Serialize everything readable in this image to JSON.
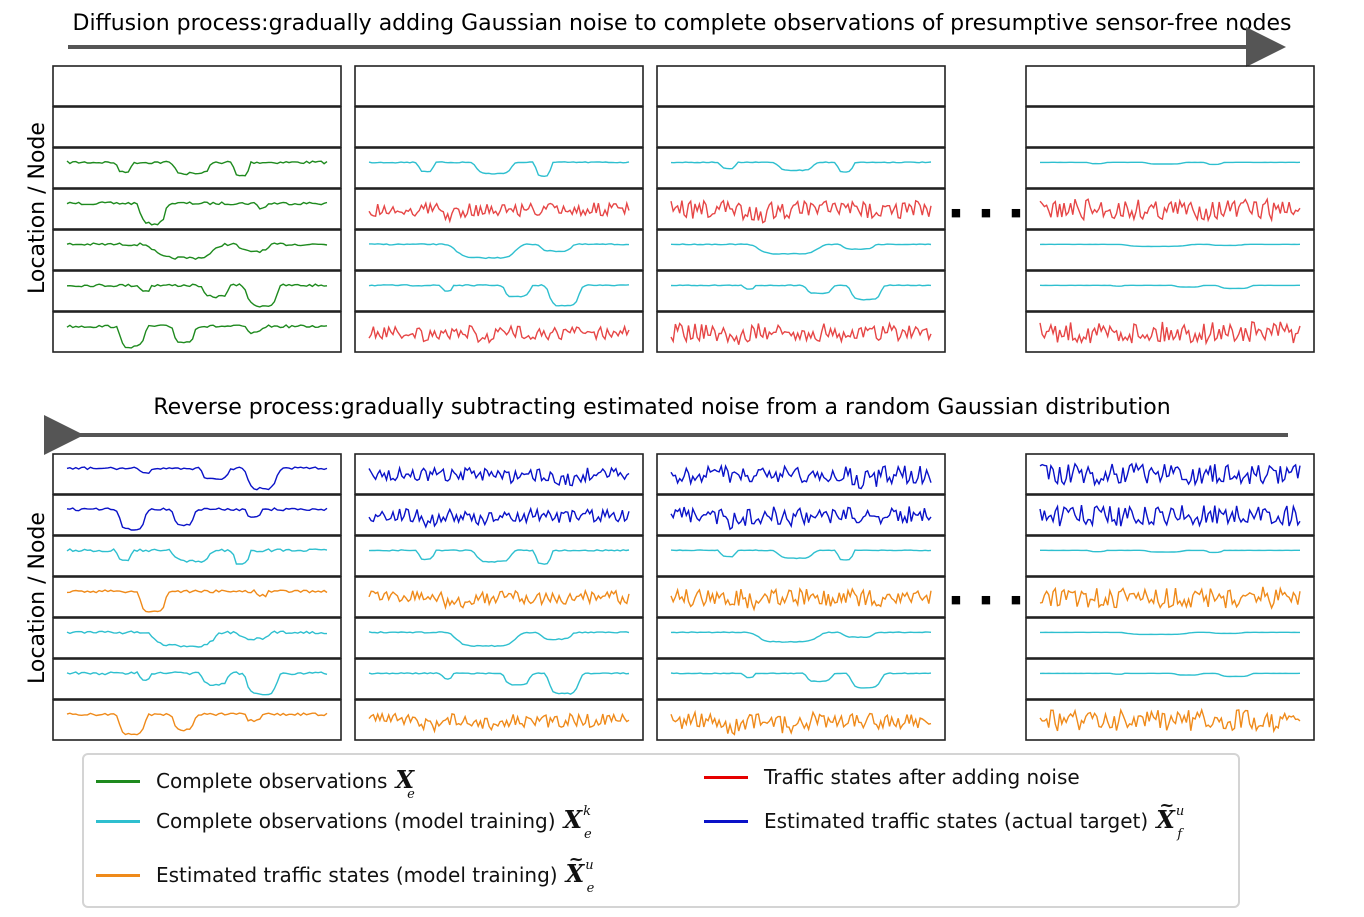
{
  "forward_title": "Diffusion process:gradually adding Gaussian noise to complete observations of presumptive sensor-free nodes",
  "reverse_title": "Reverse process:gradually subtracting estimated noise from a random Gaussian distribution",
  "y_axis_label": "Location / Node",
  "ellipsis_glyph": "■",
  "colors": {
    "green": "#1e8a1e",
    "cyan": "#2ebfcf",
    "red": "#e64646",
    "blue": "#0a12c8",
    "orange": "#ef8a1a",
    "arrow": "#555555",
    "frame": "#222222"
  },
  "forward_panels": [
    [
      "empty",
      "empty",
      "green",
      "green",
      "green",
      "green",
      "green"
    ],
    [
      "empty",
      "empty",
      "cyan",
      "red",
      "cyan",
      "cyan",
      "red"
    ],
    [
      "empty",
      "empty",
      "cyan",
      "red",
      "cyan",
      "cyan",
      "red"
    ],
    [
      "empty",
      "empty",
      "cyan",
      "red",
      "cyan",
      "cyan",
      "red"
    ]
  ],
  "reverse_panels": [
    [
      "blue",
      "blue",
      "cyan",
      "orange",
      "cyan",
      "cyan",
      "orange"
    ],
    [
      "blue",
      "blue",
      "cyan",
      "orange",
      "cyan",
      "cyan",
      "orange"
    ],
    [
      "blue",
      "blue",
      "cyan",
      "orange",
      "cyan",
      "cyan",
      "orange"
    ],
    [
      "blue",
      "blue",
      "cyan",
      "orange",
      "cyan",
      "cyan",
      "orange"
    ]
  ],
  "legend": {
    "complete_obs": {
      "label": "Complete observations",
      "color": "#1e8a1e",
      "symbol": "X",
      "sub": "e"
    },
    "complete_obs_train": {
      "label": "Complete observations (model training)",
      "color": "#2ebfcf",
      "symbol": "X",
      "sub": "e",
      "sup": "k"
    },
    "est_traffic_train": {
      "label": "Estimated traffic states (model training)",
      "color": "#ef8a1a",
      "symbol": "X",
      "sub": "e",
      "sup": "u"
    },
    "traffic_noise": {
      "label": "Traffic states after adding noise",
      "color": "#e60000"
    },
    "est_traffic_target": {
      "label": "Estimated traffic states (actual target)",
      "color": "#0a12c8",
      "symbol": "X",
      "sub": "f",
      "sup": "u"
    }
  }
}
